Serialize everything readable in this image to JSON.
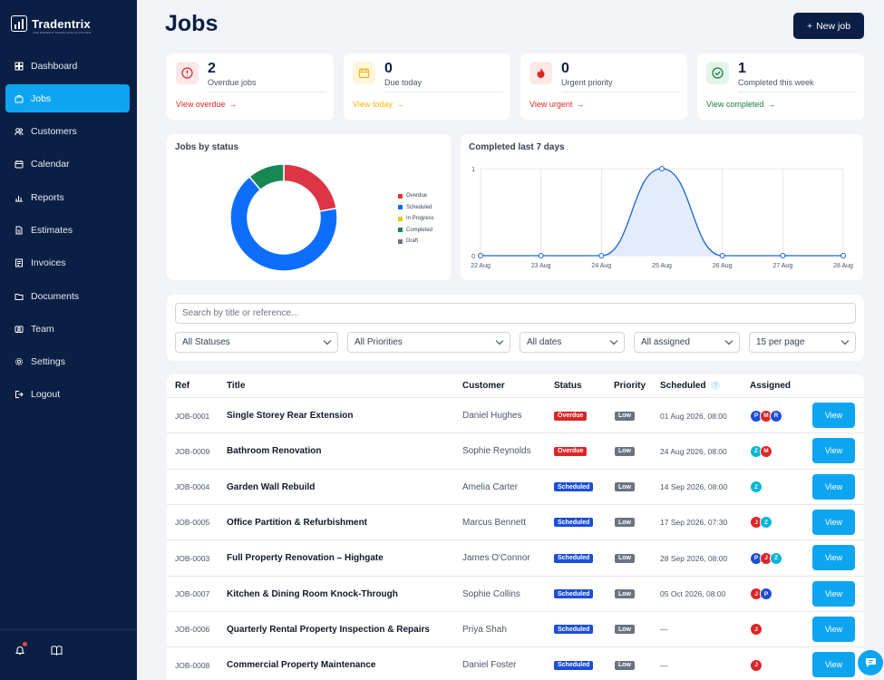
{
  "brand": {
    "name": "Tradentrix",
    "tagline": "THE MODERN TRADE CRM PLATFORM"
  },
  "sidebar": {
    "items": [
      {
        "label": "Dashboard",
        "icon": "grid-icon",
        "active": false
      },
      {
        "label": "Jobs",
        "icon": "briefcase-icon",
        "active": true
      },
      {
        "label": "Customers",
        "icon": "users-icon",
        "active": false
      },
      {
        "label": "Calendar",
        "icon": "calendar-icon",
        "active": false
      },
      {
        "label": "Reports",
        "icon": "bar-chart-icon",
        "active": false
      },
      {
        "label": "Estimates",
        "icon": "document-icon",
        "active": false
      },
      {
        "label": "Invoices",
        "icon": "invoice-icon",
        "active": false
      },
      {
        "label": "Documents",
        "icon": "folder-icon",
        "active": false
      },
      {
        "label": "Team",
        "icon": "id-card-icon",
        "active": false
      },
      {
        "label": "Settings",
        "icon": "gear-icon",
        "active": false
      },
      {
        "label": "Logout",
        "icon": "logout-icon",
        "active": false
      }
    ]
  },
  "header": {
    "title": "Jobs",
    "new_job_label": "New job"
  },
  "stats": [
    {
      "value": "2",
      "label": "Overdue jobs",
      "link": "View overdue",
      "color": "#dc2626",
      "bg": "#fde8e8",
      "icon": "alert-icon"
    },
    {
      "value": "0",
      "label": "Due today",
      "link": "View today",
      "color": "#f5b50a",
      "bg": "#fef6dc",
      "icon": "calendar-icon"
    },
    {
      "value": "0",
      "label": "Urgent priority",
      "link": "View urgent",
      "color": "#dc2626",
      "bg": "#fde8e8",
      "icon": "fire-icon"
    },
    {
      "value": "1",
      "label": "Completed this week",
      "link": "View completed",
      "color": "#15803d",
      "bg": "#e3f5e8",
      "icon": "check-circle-icon"
    }
  ],
  "donut": {
    "title": "Jobs by status",
    "legend": [
      {
        "label": "Overdue",
        "color": "#dc3545"
      },
      {
        "label": "Scheduled",
        "color": "#0d6efd"
      },
      {
        "label": "In Progress",
        "color": "#ffc107"
      },
      {
        "label": "Completed",
        "color": "#198754"
      },
      {
        "label": "Draft",
        "color": "#6c757d"
      }
    ]
  },
  "chart_data": [
    {
      "type": "pie",
      "title": "Jobs by status",
      "labels": [
        "Overdue",
        "Scheduled",
        "In Progress",
        "Completed",
        "Draft"
      ],
      "values": [
        2,
        6,
        0,
        1,
        0
      ],
      "colors": [
        "#dc3545",
        "#0d6efd",
        "#ffc107",
        "#198754",
        "#6c757d"
      ],
      "donut": true,
      "legend": "right"
    },
    {
      "type": "area",
      "title": "Completed last 7 days",
      "categories": [
        "22 Aug",
        "23 Aug",
        "24 Aug",
        "25 Aug",
        "26 Aug",
        "27 Aug",
        "28 Aug"
      ],
      "values": [
        0,
        0,
        0,
        1,
        0,
        0,
        0
      ],
      "yticks": [
        0,
        1
      ],
      "ylim": [
        0,
        1
      ],
      "grid": true,
      "color": "#1e66d0"
    }
  ],
  "filters": {
    "search_placeholder": "Search by title or reference...",
    "selects": [
      "All Statuses",
      "All Priorities",
      "All dates",
      "All assigned",
      "15 per page"
    ]
  },
  "table": {
    "headers": {
      "ref": "Ref",
      "title": "Title",
      "customer": "Customer",
      "status": "Status",
      "priority": "Priority",
      "scheduled": "Scheduled",
      "sort_icon": "↑",
      "assigned": "Assigned"
    },
    "view_label": "View",
    "rows": [
      {
        "ref": "JOB-0001",
        "title": "Single Storey Rear Extension",
        "customer": "Daniel Hughes",
        "status": "Overdue",
        "priority": "Low",
        "scheduled": "01 Aug 2026, 08:00",
        "assigned": [
          [
            "P",
            "#1d4ed8"
          ],
          [
            "M",
            "#dc2626"
          ],
          [
            "R",
            "#1d4ed8"
          ]
        ]
      },
      {
        "ref": "JOB-0009",
        "title": "Bathroom Renovation",
        "customer": "Sophie Reynolds",
        "status": "Overdue",
        "priority": "Low",
        "scheduled": "24 Aug 2026, 08:00",
        "assigned": [
          [
            "Z",
            "#06b6d4"
          ],
          [
            "M",
            "#dc2626"
          ]
        ]
      },
      {
        "ref": "JOB-0004",
        "title": "Garden Wall Rebuild",
        "customer": "Amelia Carter",
        "status": "Scheduled",
        "priority": "Low",
        "scheduled": "14 Sep 2026, 08:00",
        "assigned": [
          [
            "Z",
            "#06b6d4"
          ]
        ]
      },
      {
        "ref": "JOB-0005",
        "title": "Office Partition & Refurbishment",
        "customer": "Marcus Bennett",
        "status": "Scheduled",
        "priority": "Low",
        "scheduled": "17 Sep 2026, 07:30",
        "assigned": [
          [
            "J",
            "#dc2626"
          ],
          [
            "Z",
            "#06b6d4"
          ]
        ]
      },
      {
        "ref": "JOB-0003",
        "title": "Full Property Renovation – Highgate",
        "customer": "James O'Connor",
        "status": "Scheduled",
        "priority": "Low",
        "scheduled": "28 Sep 2026, 08:00",
        "assigned": [
          [
            "P",
            "#1d4ed8"
          ],
          [
            "J",
            "#dc2626"
          ],
          [
            "Z",
            "#06b6d4"
          ]
        ]
      },
      {
        "ref": "JOB-0007",
        "title": "Kitchen & Dining Room Knock-Through",
        "customer": "Sophie Collins",
        "status": "Scheduled",
        "priority": "Low",
        "scheduled": "05 Oct 2026, 08:00",
        "assigned": [
          [
            "J",
            "#dc2626"
          ],
          [
            "P",
            "#1d4ed8"
          ]
        ]
      },
      {
        "ref": "JOB-0006",
        "title": "Quarterly Rental Property Inspection & Repairs",
        "customer": "Priya Shah",
        "status": "Scheduled",
        "priority": "Low",
        "scheduled": "—",
        "assigned": [
          [
            "J",
            "#dc2626"
          ]
        ]
      },
      {
        "ref": "JOB-0008",
        "title": "Commercial Property Maintenance",
        "customer": "Daniel Foster",
        "status": "Scheduled",
        "priority": "Low",
        "scheduled": "—",
        "assigned": [
          [
            "J",
            "#dc2626"
          ]
        ]
      }
    ]
  }
}
